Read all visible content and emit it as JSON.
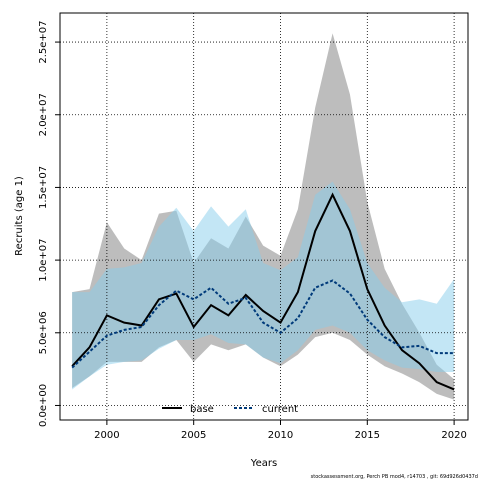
{
  "chart_data": {
    "type": "area",
    "xlabel": "Years",
    "ylabel": "Recruits (age 1)",
    "xlim": [
      1997.3,
      2020.8
    ],
    "ylim": [
      -1000000,
      27000000
    ],
    "x_ticks": [
      2000,
      2005,
      2010,
      2015,
      2020
    ],
    "x_tick_labels": [
      "2000",
      "2005",
      "2010",
      "2015",
      "2020"
    ],
    "y_ticks": [
      0,
      5000000,
      10000000,
      15000000,
      20000000,
      25000000
    ],
    "y_tick_labels": [
      "0.0e+00",
      "5.0e+06",
      "1.0e+07",
      "1.5e+07",
      "2.0e+07",
      "2.5e+07"
    ],
    "grid": true,
    "legend_position": "bottom-center",
    "years": [
      1998,
      1999,
      2000,
      2001,
      2002,
      2003,
      2004,
      2005,
      2006,
      2007,
      2008,
      2009,
      2010,
      2011,
      2012,
      2013,
      2014,
      2015,
      2016,
      2017,
      2018,
      2019,
      2020
    ],
    "series": [
      {
        "name": "base",
        "color": "#000000",
        "line_style": "solid",
        "band_color": "#999999",
        "values": [
          2700000,
          4000000,
          6200000,
          5700000,
          5500000,
          7300000,
          7700000,
          5400000,
          6900000,
          6200000,
          7600000,
          6500000,
          5700000,
          7800000,
          12000000,
          14500000,
          12000000,
          8000000,
          5500000,
          3800000,
          2900000,
          1600000,
          1100000
        ],
        "lower": [
          1200000,
          2000000,
          3000000,
          3000000,
          3000000,
          4000000,
          4500000,
          3000000,
          4200000,
          3800000,
          4200000,
          3300000,
          2700000,
          3500000,
          4700000,
          5000000,
          4500000,
          3500000,
          2700000,
          2200000,
          1600000,
          800000,
          400000
        ],
        "upper": [
          7800000,
          8000000,
          12600000,
          10800000,
          10000000,
          13200000,
          13400000,
          9800000,
          11500000,
          10800000,
          13000000,
          11000000,
          10300000,
          13500000,
          20500000,
          25600000,
          21400000,
          14000000,
          9400000,
          7000000,
          5000000,
          2800000,
          1800000
        ]
      },
      {
        "name": "current",
        "color": "#003a7a",
        "line_style": "dashed",
        "band_color": "#87ceeb",
        "values": [
          2600000,
          3700000,
          4800000,
          5200000,
          5400000,
          6900000,
          7900000,
          7300000,
          8100000,
          7000000,
          7400000,
          5700000,
          5000000,
          6000000,
          8100000,
          8600000,
          7700000,
          5900000,
          4700000,
          4000000,
          4100000,
          3600000,
          3600000
        ],
        "lower": [
          1100000,
          2000000,
          2800000,
          3000000,
          3100000,
          3900000,
          4500000,
          4500000,
          4900000,
          4300000,
          4200000,
          3300000,
          2900000,
          3800000,
          5200000,
          5500000,
          5000000,
          3800000,
          3100000,
          2600000,
          2500000,
          2300000,
          2300000
        ],
        "upper": [
          7800000,
          7800000,
          9400000,
          9500000,
          9800000,
          12300000,
          13600000,
          12000000,
          13700000,
          12300000,
          13500000,
          9800000,
          9300000,
          10200000,
          14500000,
          15400000,
          13500000,
          9800000,
          8100000,
          7100000,
          7300000,
          7000000,
          8700000
        ]
      }
    ]
  },
  "footnote": "stockassessment.org, Perch PB mod4, r14703 , git: 69d926d0437d"
}
